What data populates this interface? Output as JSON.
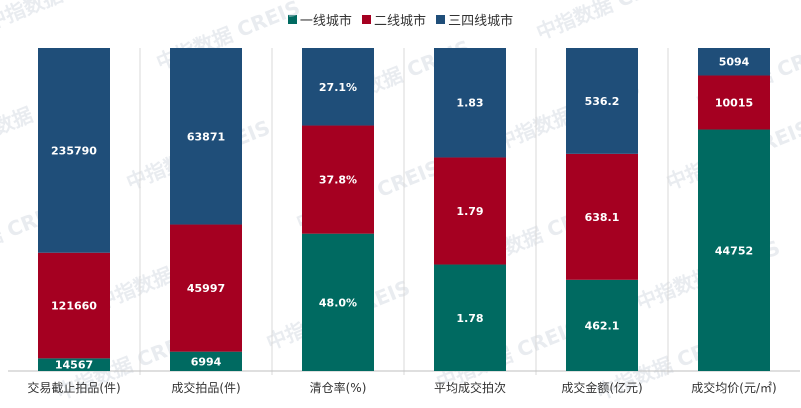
{
  "chart_data": {
    "type": "bar",
    "stacked": "percent",
    "title": "",
    "xlabel": "",
    "ylabel": "",
    "categories": [
      "交易截止拍品(件)",
      "成交拍品(件)",
      "清仓率(%)",
      "平均成交拍次",
      "成交金额(亿元)",
      "成交均价(元/㎡)"
    ],
    "series": [
      {
        "name": "一线城市",
        "color": "#006a61",
        "values": [
          14567,
          6994,
          48.0,
          1.78,
          462.1,
          44752
        ],
        "labels": [
          "14567",
          "6994",
          "48.0%",
          "1.78",
          "462.1",
          "44752"
        ]
      },
      {
        "name": "二线城市",
        "color": "#a50021",
        "values": [
          121660,
          45997,
          37.8,
          1.79,
          638.1,
          10015
        ],
        "labels": [
          "121660",
          "45997",
          "37.8%",
          "1.79",
          "638.1",
          "10015"
        ]
      },
      {
        "name": "三四线城市",
        "color": "#1f4e79",
        "values": [
          235790,
          63871,
          27.1,
          1.83,
          536.2,
          5094
        ],
        "labels": [
          "235790",
          "63871",
          "27.1%",
          "1.83",
          "536.2",
          "5094"
        ]
      }
    ],
    "legend_position": "top",
    "grid": false,
    "watermark": "中指数据 CREIS"
  }
}
